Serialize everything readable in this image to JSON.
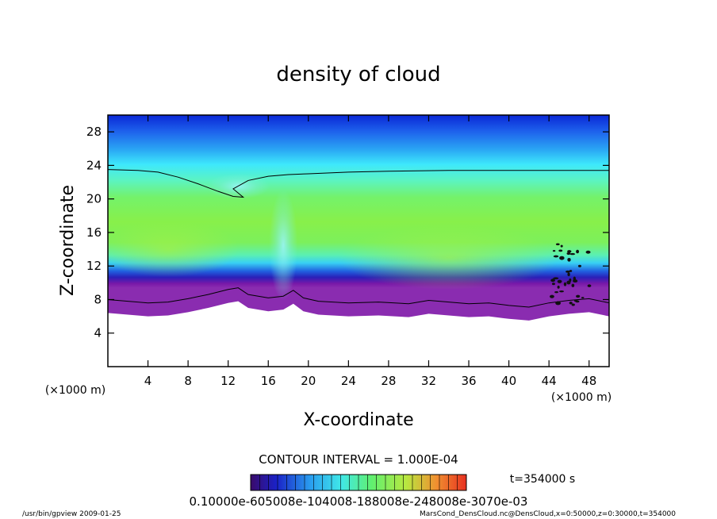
{
  "chart_data": {
    "type": "heatmap",
    "title": "density of cloud",
    "xlabel": "X-coordinate",
    "ylabel": "Z-coordinate",
    "x_unit_left": "(×1000 m)",
    "x_unit_right": "(×1000 m)",
    "xlim": [
      0,
      50
    ],
    "ylim": [
      0,
      30
    ],
    "xticks": [
      4,
      8,
      12,
      16,
      20,
      24,
      28,
      32,
      36,
      40,
      44,
      48
    ],
    "yticks": [
      4,
      8,
      12,
      16,
      20,
      24,
      28
    ],
    "contour_interval_text": "CONTOUR INTERVAL = 1.000E-04",
    "time_text": "t=354000 s",
    "colorbar_labels_text": "0.10000e-605008e-104008-188008e-248008e-3070e-03",
    "cloud_top_contour": [
      [
        0,
        23.5
      ],
      [
        3,
        23.4
      ],
      [
        5,
        23.2
      ],
      [
        7,
        22.6
      ],
      [
        9,
        21.8
      ],
      [
        11,
        20.9
      ],
      [
        12.5,
        20.3
      ],
      [
        13.5,
        20.2
      ],
      [
        12.5,
        21.2
      ],
      [
        14,
        22.2
      ],
      [
        16,
        22.7
      ],
      [
        18,
        22.9
      ],
      [
        20,
        23.0
      ],
      [
        24,
        23.2
      ],
      [
        28,
        23.3
      ],
      [
        34,
        23.4
      ],
      [
        40,
        23.4
      ],
      [
        44,
        23.4
      ],
      [
        50,
        23.4
      ]
    ],
    "cloud_base_contour": [
      [
        0,
        8.0
      ],
      [
        2,
        7.8
      ],
      [
        4,
        7.6
      ],
      [
        6,
        7.7
      ],
      [
        8,
        8.1
      ],
      [
        10,
        8.6
      ],
      [
        12,
        9.2
      ],
      [
        13,
        9.4
      ],
      [
        14,
        8.6
      ],
      [
        16,
        8.2
      ],
      [
        17.5,
        8.4
      ],
      [
        18.5,
        9.1
      ],
      [
        19.5,
        8.2
      ],
      [
        21,
        7.8
      ],
      [
        24,
        7.6
      ],
      [
        27,
        7.7
      ],
      [
        30,
        7.5
      ],
      [
        32,
        7.9
      ],
      [
        34,
        7.7
      ],
      [
        36,
        7.5
      ],
      [
        38,
        7.6
      ],
      [
        40,
        7.3
      ],
      [
        42,
        7.1
      ],
      [
        44,
        7.6
      ],
      [
        46,
        7.9
      ],
      [
        48,
        8.1
      ],
      [
        50,
        7.6
      ]
    ]
  },
  "footer": {
    "left": "/usr/bin/gpview   2009-01-25",
    "right": "MarsCond_DensCloud.nc@DensCloud,x=0:50000,z=0:30000,t=354000"
  },
  "colors": {
    "background": "#ffffff",
    "top_blue": "#1030d8",
    "cyan": "#40f0ff",
    "green": "#80f040",
    "purple": "#6010a0",
    "contour": "#000000"
  }
}
